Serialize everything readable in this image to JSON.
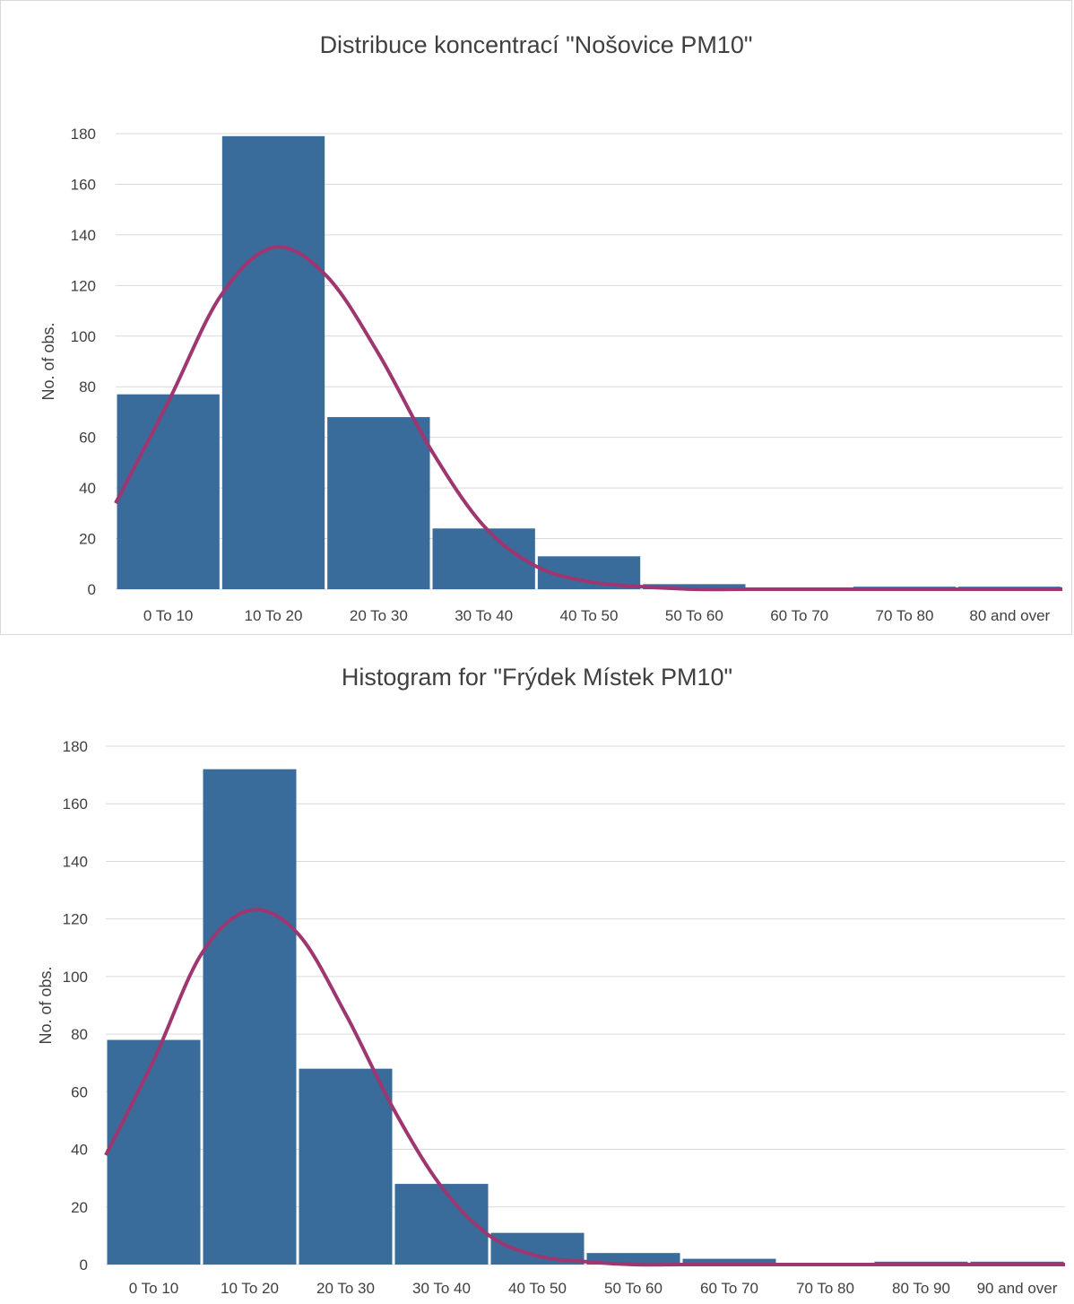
{
  "colors": {
    "bar": "#396b9b",
    "curve": "#9e3670",
    "grid": "#d9d9d9",
    "text": "#404040"
  },
  "chart_data": [
    {
      "type": "bar",
      "title": "Distribuce koncentrací \"Nošovice PM10\"",
      "xlabel": "",
      "ylabel": "No. of obs.",
      "ylim": [
        0,
        180
      ],
      "yticks": [
        0,
        20,
        40,
        60,
        80,
        100,
        120,
        140,
        160,
        180
      ],
      "grid": true,
      "legend": "none",
      "categories": [
        "0 To 10",
        "10 To 20",
        "20 To 30",
        "30 To 40",
        "40 To 50",
        "50 To 60",
        "60 To 70",
        "70 To 80",
        "80 and over"
      ],
      "values": [
        77,
        179,
        68,
        24,
        13,
        2,
        0,
        1,
        1
      ],
      "curve": {
        "type": "line",
        "x": [
          0,
          0.5,
          1,
          1.5,
          2,
          2.5,
          3,
          3.5,
          4,
          4.5,
          5,
          5.5,
          6,
          6.5,
          7,
          7.5,
          8,
          8.5,
          9
        ],
        "values": [
          34,
          74,
          116,
          135,
          124,
          93,
          55,
          25,
          9,
          3,
          1,
          0,
          0,
          0,
          0,
          0,
          0,
          0,
          0
        ]
      }
    },
    {
      "type": "bar",
      "title": "Histogram for \"Frýdek Místek PM10\"",
      "xlabel": "",
      "ylabel": "No. of obs.",
      "ylim": [
        0,
        180
      ],
      "yticks": [
        0,
        20,
        40,
        60,
        80,
        100,
        120,
        140,
        160,
        180
      ],
      "grid": true,
      "legend": "none",
      "categories": [
        "0 To 10",
        "10 To 20",
        "20 To 30",
        "30 To 40",
        "40 To 50",
        "50 To 60",
        "60 To 70",
        "70 To 80",
        "80 To 90",
        "90 and over"
      ],
      "values": [
        78,
        172,
        68,
        28,
        11,
        4,
        2,
        0,
        1,
        1
      ],
      "curve": {
        "type": "line",
        "x": [
          0,
          0.5,
          1,
          1.5,
          2,
          2.5,
          3,
          3.5,
          4,
          4.5,
          5,
          5.5,
          6,
          6.5,
          7,
          7.5,
          8,
          8.5,
          9,
          9.5,
          10
        ],
        "values": [
          38,
          71,
          108,
          123,
          115,
          87,
          54,
          27,
          10,
          3,
          1,
          0,
          0,
          0,
          0,
          0,
          0,
          0,
          0,
          0,
          0
        ]
      }
    }
  ]
}
